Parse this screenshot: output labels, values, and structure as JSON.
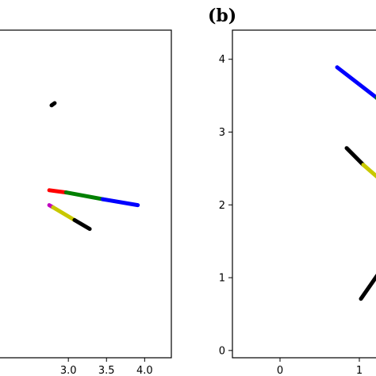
{
  "figure": {
    "panels": [
      "(b)"
    ]
  },
  "chart_data": [
    {
      "type": "line",
      "panel": "a",
      "xlim": [
        2.0,
        4.35
      ],
      "ylim": [
        0,
        4.4
      ],
      "xticks": [
        3.0,
        3.5,
        4.0
      ],
      "xtick_labels": [
        "3.0",
        "3.5",
        "4.0"
      ],
      "yticks": [],
      "ytick_labels": [],
      "grid": false,
      "colors": {
        "black": "#000000",
        "red": "#ff0000",
        "green": "#008000",
        "blue": "#0000ff",
        "olive": "#c8c800",
        "magenta": "#c000c0"
      },
      "series": [
        {
          "color_key": "black",
          "points": [
            [
              2.78,
              3.39
            ],
            [
              2.82,
              3.42
            ]
          ]
        },
        {
          "color_key": "red",
          "points": [
            [
              2.75,
              2.25
            ],
            [
              2.97,
              2.22
            ]
          ]
        },
        {
          "color_key": "green",
          "points": [
            [
              2.97,
              2.22
            ],
            [
              3.45,
              2.13
            ]
          ]
        },
        {
          "color_key": "blue",
          "points": [
            [
              3.45,
              2.13
            ],
            [
              3.91,
              2.05
            ]
          ]
        },
        {
          "color_key": "magenta",
          "points": [
            [
              2.75,
              2.05
            ],
            [
              2.8,
              2.02
            ]
          ]
        },
        {
          "color_key": "olive",
          "points": [
            [
              2.8,
              2.02
            ],
            [
              3.08,
              1.85
            ]
          ]
        },
        {
          "color_key": "black",
          "points": [
            [
              3.08,
              1.85
            ],
            [
              3.28,
              1.73
            ]
          ]
        }
      ]
    },
    {
      "type": "line",
      "panel": "b",
      "xlim": [
        -0.6,
        1.4
      ],
      "ylim": [
        -0.1,
        4.4
      ],
      "xticks": [
        0,
        1
      ],
      "xtick_labels": [
        "0",
        "1"
      ],
      "yticks": [
        0,
        1,
        2,
        3,
        4
      ],
      "ytick_labels": [
        "0",
        "1",
        "2",
        "3",
        "4"
      ],
      "grid": false,
      "colors": {
        "black": "#000000",
        "green": "#008000",
        "blue": "#0000ff",
        "olive": "#c8c800"
      },
      "series": [
        {
          "color_key": "blue",
          "points": [
            [
              0.72,
              3.89
            ],
            [
              1.22,
              3.47
            ]
          ]
        },
        {
          "color_key": "green",
          "points": [
            [
              1.22,
              3.47
            ],
            [
              1.4,
              3.27
            ]
          ]
        },
        {
          "color_key": "black",
          "points": [
            [
              0.84,
              2.78
            ],
            [
              1.05,
              2.55
            ]
          ]
        },
        {
          "color_key": "olive",
          "points": [
            [
              1.05,
              2.55
            ],
            [
              1.4,
              2.22
            ]
          ]
        },
        {
          "color_key": "olive",
          "points": [
            [
              1.32,
              1.18
            ],
            [
              1.4,
              1.42
            ]
          ]
        },
        {
          "color_key": "black",
          "points": [
            [
              1.02,
              0.71
            ],
            [
              1.32,
              1.18
            ]
          ]
        }
      ]
    }
  ]
}
